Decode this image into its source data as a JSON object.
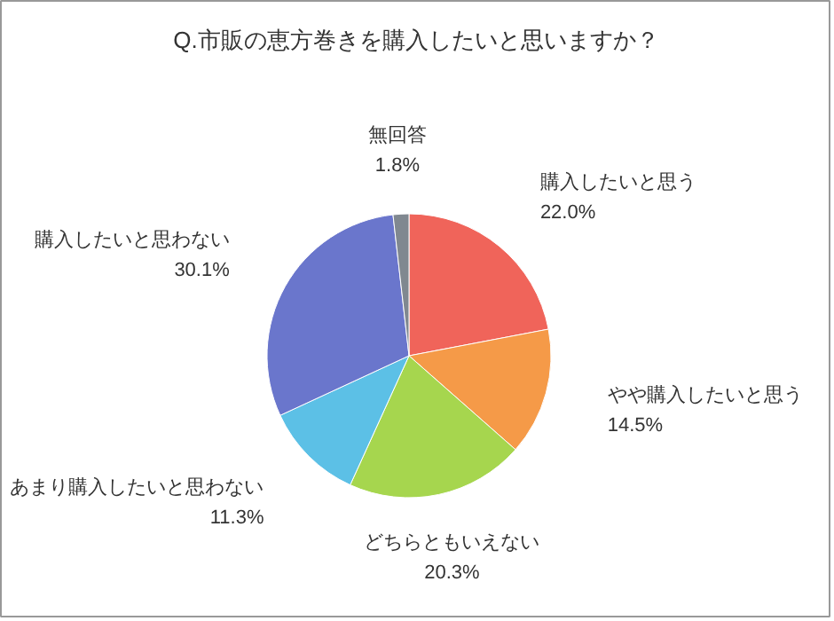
{
  "chart_data": {
    "type": "pie",
    "title": "Q.市販の恵方巻きを購入したいと思いますか？",
    "categories": [
      "購入したいと思う",
      "やや購入したいと思う",
      "どちらともいえない",
      "あまり購入したいと思わない",
      "購入したいと思わない",
      "無回答"
    ],
    "values": [
      22.0,
      14.5,
      20.3,
      11.3,
      30.1,
      1.8
    ],
    "value_labels": [
      "22.0%",
      "14.5%",
      "20.3%",
      "11.3%",
      "30.1%",
      "1.8%"
    ],
    "colors": [
      "#f0645a",
      "#f59a48",
      "#a6d64e",
      "#5cc0e6",
      "#6a76cc",
      "#808890"
    ]
  }
}
